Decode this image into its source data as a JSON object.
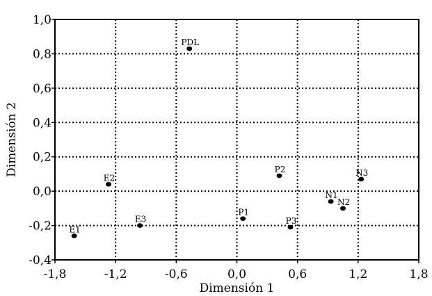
{
  "chart_data": {
    "type": "scatter",
    "title": "",
    "xlabel": "Dimensión 1",
    "ylabel": "Dimensión 2",
    "xlim": [
      -1.8,
      1.8
    ],
    "ylim": [
      -0.4,
      1.0
    ],
    "xticks": [
      -1.8,
      -1.2,
      -0.6,
      0.0,
      0.6,
      1.2,
      1.8
    ],
    "xtick_labels": [
      "-1,8",
      "-1,2",
      "-0,6",
      "0,0",
      "0,6",
      "1,2",
      "1,8"
    ],
    "yticks": [
      -0.4,
      -0.2,
      0.0,
      0.2,
      0.4,
      0.6,
      0.8,
      1.0
    ],
    "ytick_labels": [
      "-0,4",
      "-0,2",
      "0,0",
      "0,2",
      "0,4",
      "0,6",
      "0,8",
      "1,0"
    ],
    "grid": true,
    "points": [
      {
        "label": "PDL",
        "x": -0.47,
        "y": 0.83
      },
      {
        "label": "E2",
        "x": -1.27,
        "y": 0.04
      },
      {
        "label": "E1",
        "x": -1.61,
        "y": -0.26
      },
      {
        "label": "E3",
        "x": -0.96,
        "y": -0.2
      },
      {
        "label": "P1",
        "x": 0.06,
        "y": -0.16
      },
      {
        "label": "P2",
        "x": 0.42,
        "y": 0.09
      },
      {
        "label": "P3",
        "x": 0.53,
        "y": -0.21
      },
      {
        "label": "N1",
        "x": 0.93,
        "y": -0.06
      },
      {
        "label": "N2",
        "x": 1.05,
        "y": -0.1
      },
      {
        "label": "N3",
        "x": 1.23,
        "y": 0.07
      }
    ]
  }
}
